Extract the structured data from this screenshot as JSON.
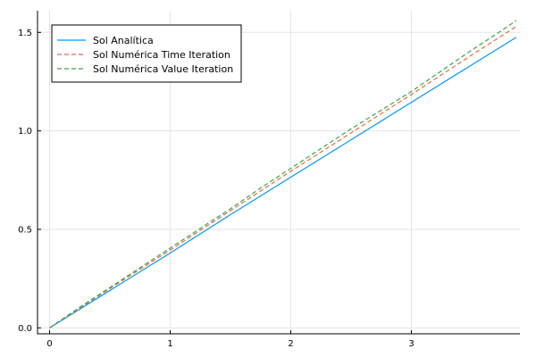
{
  "chart_data": {
    "type": "line",
    "title": "",
    "xlabel": "",
    "ylabel": "",
    "xlim": [
      -0.1,
      3.9
    ],
    "ylim": [
      -0.03,
      1.61
    ],
    "xticks": [
      0,
      1,
      2,
      3
    ],
    "xtick_labels": [
      "0",
      "1",
      "2",
      "3"
    ],
    "yticks": [
      0.0,
      0.5,
      1.0,
      1.5
    ],
    "ytick_labels": [
      "0.0",
      "0.5",
      "1.0",
      "1.5"
    ],
    "grid": true,
    "legend_position": "top-left",
    "series": [
      {
        "name": "Sol Analítica",
        "color": "#009af9",
        "style": "solid",
        "x": [
          0,
          0.5,
          1.0,
          1.5,
          2.0,
          2.5,
          3.0,
          3.5,
          3.87
        ],
        "y": [
          0.0,
          0.19,
          0.38,
          0.575,
          0.765,
          0.955,
          1.145,
          1.335,
          1.475
        ]
      },
      {
        "name": "Sol Numérica Time Iteration",
        "color": "#e26f46",
        "style": "dashed",
        "x": [
          0,
          0.5,
          1.0,
          1.5,
          2.0,
          2.5,
          3.0,
          3.5,
          3.87
        ],
        "y": [
          0.0,
          0.2,
          0.395,
          0.595,
          0.795,
          0.99,
          1.185,
          1.385,
          1.53
        ]
      },
      {
        "name": "Sol Numérica Value Iteration",
        "color": "#3da44d",
        "style": "dashed",
        "x": [
          0,
          0.25,
          0.5,
          0.75,
          1.0,
          1.25,
          1.5,
          1.75,
          2.0,
          2.25,
          2.5,
          2.75,
          3.0,
          3.25,
          3.5,
          3.75,
          3.87
        ],
        "y": [
          0.0,
          0.105,
          0.205,
          0.305,
          0.405,
          0.505,
          0.605,
          0.71,
          0.81,
          0.91,
          1.01,
          1.105,
          1.2,
          1.305,
          1.41,
          1.51,
          1.56
        ]
      }
    ]
  }
}
